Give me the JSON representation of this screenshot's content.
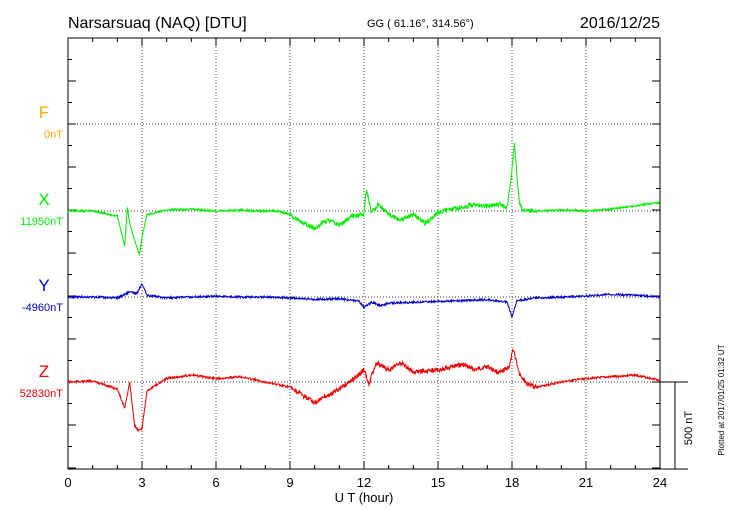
{
  "header": {
    "station": "Narsarsuaq (NAQ)  [DTU]",
    "coords": "GG ( 61.16°, 314.56°)",
    "date": "2016/12/25"
  },
  "footer": {
    "plotted": "Plotted at 2017/01/25 01:32 UT"
  },
  "colors": {
    "F": "#ffa500",
    "X": "#00ee00",
    "Y": "#0000cc",
    "Z": "#ee0000",
    "axis": "#000000"
  },
  "chart_data": {
    "type": "line",
    "xlabel": "U T (hour)",
    "xlim": [
      0,
      24
    ],
    "x_ticks": [
      "0",
      "3",
      "6",
      "9",
      "12",
      "15",
      "18",
      "21",
      "24"
    ],
    "scale_label": "500 nT",
    "scale_nT": 500,
    "series": [
      {
        "name": "F",
        "baseline_label": "0nT",
        "x": [],
        "values": []
      },
      {
        "name": "X",
        "baseline_label": "11950nT",
        "x": [
          0,
          1,
          2,
          2.3,
          2.4,
          2.5,
          2.7,
          2.9,
          3.0,
          3.2,
          4,
          5,
          6,
          7,
          8,
          8.5,
          9,
          9.5,
          10,
          10.5,
          11,
          11.5,
          12,
          12.1,
          12.3,
          12.6,
          13,
          13.5,
          14,
          14.5,
          15,
          15.5,
          16,
          16.5,
          17,
          17.5,
          17.8,
          17.95,
          18.1,
          18.3,
          18.5,
          19,
          20,
          21,
          22,
          23,
          24
        ],
        "values": [
          11950,
          11950,
          11920,
          11750,
          11970,
          11880,
          11780,
          11700,
          11800,
          11930,
          11955,
          11960,
          11950,
          11955,
          11950,
          11950,
          11930,
          11880,
          11850,
          11900,
          11870,
          11920,
          11930,
          12080,
          11940,
          11990,
          11930,
          11900,
          11930,
          11880,
          11940,
          11960,
          11970,
          11990,
          11980,
          11990,
          11970,
          12120,
          12330,
          11990,
          11950,
          11950,
          11955,
          11950,
          11960,
          11980,
          12000
        ]
      },
      {
        "name": "Y",
        "baseline_label": "-4960nT",
        "x": [
          0,
          1,
          2,
          2.5,
          2.8,
          3.0,
          3.2,
          4,
          5,
          6,
          7,
          8,
          9,
          10,
          11,
          11.8,
          12,
          12.3,
          12.7,
          13,
          14,
          15,
          16,
          17,
          17.8,
          18,
          18.2,
          19,
          20,
          21,
          22,
          23,
          24
        ],
        "values": [
          -4960,
          -4960,
          -4965,
          -4930,
          -4940,
          -4880,
          -4950,
          -4965,
          -4960,
          -4955,
          -4960,
          -4960,
          -4965,
          -4975,
          -4970,
          -4985,
          -5020,
          -4990,
          -5010,
          -4995,
          -4990,
          -4985,
          -4980,
          -4975,
          -4990,
          -5075,
          -4980,
          -4965,
          -4960,
          -4955,
          -4945,
          -4950,
          -4960
        ]
      },
      {
        "name": "Z",
        "baseline_label": "52830nT",
        "x": [
          0,
          1,
          2,
          2.3,
          2.5,
          2.7,
          2.85,
          3.0,
          3.2,
          4,
          5,
          6,
          7,
          8,
          9,
          10,
          11,
          11.5,
          12,
          12.2,
          12.5,
          13,
          13.5,
          14,
          15,
          16,
          16.5,
          17,
          17.5,
          17.9,
          18.05,
          18.3,
          18.6,
          19,
          20,
          21,
          22,
          23,
          24
        ],
        "values": [
          52830,
          52835,
          52790,
          52680,
          52830,
          52580,
          52550,
          52560,
          52780,
          52850,
          52870,
          52850,
          52860,
          52830,
          52800,
          52710,
          52790,
          52840,
          52900,
          52820,
          52940,
          52900,
          52940,
          52890,
          52900,
          52930,
          52900,
          52920,
          52880,
          52920,
          53020,
          52880,
          52820,
          52800,
          52830,
          52850,
          52860,
          52870,
          52840
        ]
      }
    ]
  }
}
